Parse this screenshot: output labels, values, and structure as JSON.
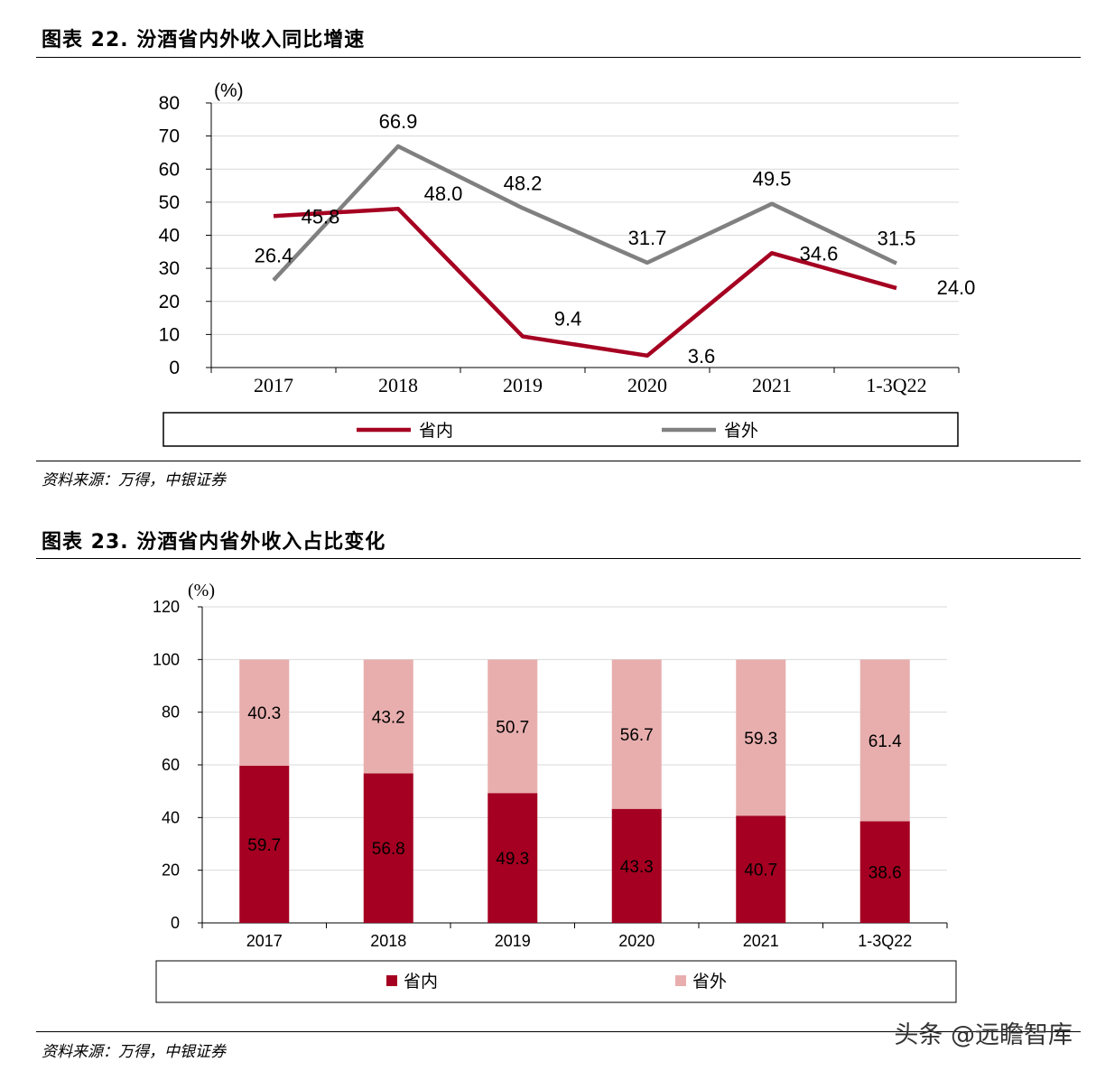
{
  "figure1": {
    "title": "图表 22. 汾酒省内外收入同比增速",
    "source": "资料来源：万得，中银证券"
  },
  "figure2": {
    "title": "图表 23. 汾酒省内省外收入占比变化",
    "source": "资料来源：万得，中银证券"
  },
  "watermark": "头条 @远瞻智库",
  "colors": {
    "inner": "#A50021",
    "outer": "#808080",
    "bar_inner": "#A50021",
    "bar_outer": "#E8AEAE"
  },
  "chart_data": [
    {
      "type": "line",
      "categories": [
        "2017",
        "2018",
        "2019",
        "2020",
        "2021",
        "1-3Q22"
      ],
      "series": [
        {
          "name": "省内",
          "values": [
            45.8,
            48.0,
            9.4,
            3.6,
            34.6,
            24.0
          ],
          "labels": [
            "45.8",
            "48.0",
            "9.4",
            "3.6",
            "34.6",
            "24.0"
          ]
        },
        {
          "name": "省外",
          "values": [
            26.4,
            66.9,
            48.2,
            31.7,
            49.5,
            31.5
          ],
          "labels": [
            "26.4",
            "66.9",
            "48.2",
            "31.7",
            "49.5",
            "31.5"
          ]
        }
      ],
      "ylabel": "(%)",
      "ylim": [
        0,
        80
      ],
      "yticks": [
        "0",
        "10",
        "20",
        "30",
        "40",
        "50",
        "60",
        "70",
        "80"
      ],
      "grid": true,
      "legend": "bottom"
    },
    {
      "type": "bar",
      "stacked": true,
      "categories": [
        "2017",
        "2018",
        "2019",
        "2020",
        "2021",
        "1-3Q22"
      ],
      "series": [
        {
          "name": "省内",
          "values": [
            59.7,
            56.8,
            49.3,
            43.3,
            40.7,
            38.6
          ],
          "labels": [
            "59.7",
            "56.8",
            "49.3",
            "43.3",
            "40.7",
            "38.6"
          ]
        },
        {
          "name": "省外",
          "values": [
            40.3,
            43.2,
            50.7,
            56.7,
            59.3,
            61.4
          ],
          "labels": [
            "40.3",
            "43.2",
            "50.7",
            "56.7",
            "59.3",
            "61.4"
          ]
        }
      ],
      "ylabel": "(%)",
      "ylim": [
        0,
        120
      ],
      "yticks": [
        "0",
        "20",
        "40",
        "60",
        "80",
        "100",
        "120"
      ],
      "grid": true,
      "legend": "bottom"
    }
  ]
}
